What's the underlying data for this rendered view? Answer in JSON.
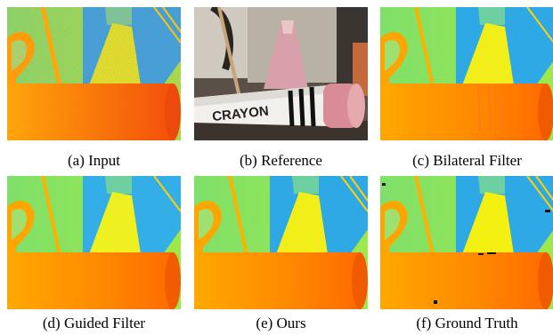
{
  "figure": {
    "panels": [
      {
        "key": "input",
        "caption": "(a) Input"
      },
      {
        "key": "reference",
        "caption": "(b) Reference"
      },
      {
        "key": "bilateral",
        "caption": "(c) Bilateral Filter"
      },
      {
        "key": "guided",
        "caption": "(d) Guided Filter"
      },
      {
        "key": "ours",
        "caption": "(e) Ours"
      },
      {
        "key": "ground",
        "caption": "(f) Ground Truth"
      }
    ],
    "reference_text": "CRAYON"
  }
}
